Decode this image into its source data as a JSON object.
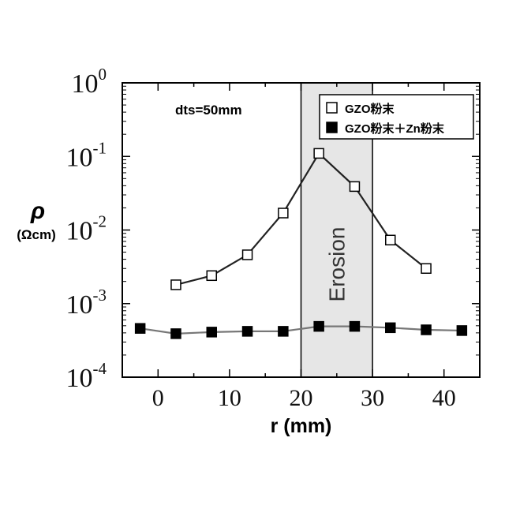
{
  "chart_data": {
    "type": "scatter",
    "xlabel": "r (mm)",
    "ylabel": "ρ",
    "ylabel_unit": "(Ωcm)",
    "xlim": [
      -5,
      45
    ],
    "ylim": [
      0.0001,
      1
    ],
    "yscale": "log",
    "x_ticks": [
      0,
      10,
      20,
      30,
      40
    ],
    "y_ticks": [
      {
        "value": 1,
        "base": "10",
        "exp": "0"
      },
      {
        "value": 0.1,
        "base": "10",
        "exp": "-1"
      },
      {
        "value": 0.01,
        "base": "10",
        "exp": "-2"
      },
      {
        "value": 0.001,
        "base": "10",
        "exp": "-3"
      },
      {
        "value": 0.0001,
        "base": "10",
        "exp": "-4"
      }
    ],
    "annotation": "dts=50mm",
    "region": {
      "label": "Erosion",
      "x_range": [
        20,
        30
      ],
      "color": "#e6e6e6"
    },
    "legend_position": "top-right",
    "series": [
      {
        "name": "GZO粉末",
        "marker": "open-square",
        "line_color": "#222222",
        "x": [
          2.5,
          7.5,
          12.5,
          17.5,
          22.5,
          27.5,
          32.5,
          37.5
        ],
        "y": [
          0.0018,
          0.0024,
          0.0046,
          0.017,
          0.11,
          0.039,
          0.0073,
          0.003
        ]
      },
      {
        "name": "GZO粉末＋Zn粉末",
        "marker": "filled-square",
        "line_color": "#777777",
        "x": [
          -2.5,
          2.5,
          7.5,
          12.5,
          17.5,
          22.5,
          27.5,
          32.5,
          37.5,
          42.5
        ],
        "y": [
          0.00046,
          0.00039,
          0.00041,
          0.00042,
          0.00042,
          0.00049,
          0.00049,
          0.00047,
          0.00044,
          0.00043
        ]
      }
    ]
  }
}
